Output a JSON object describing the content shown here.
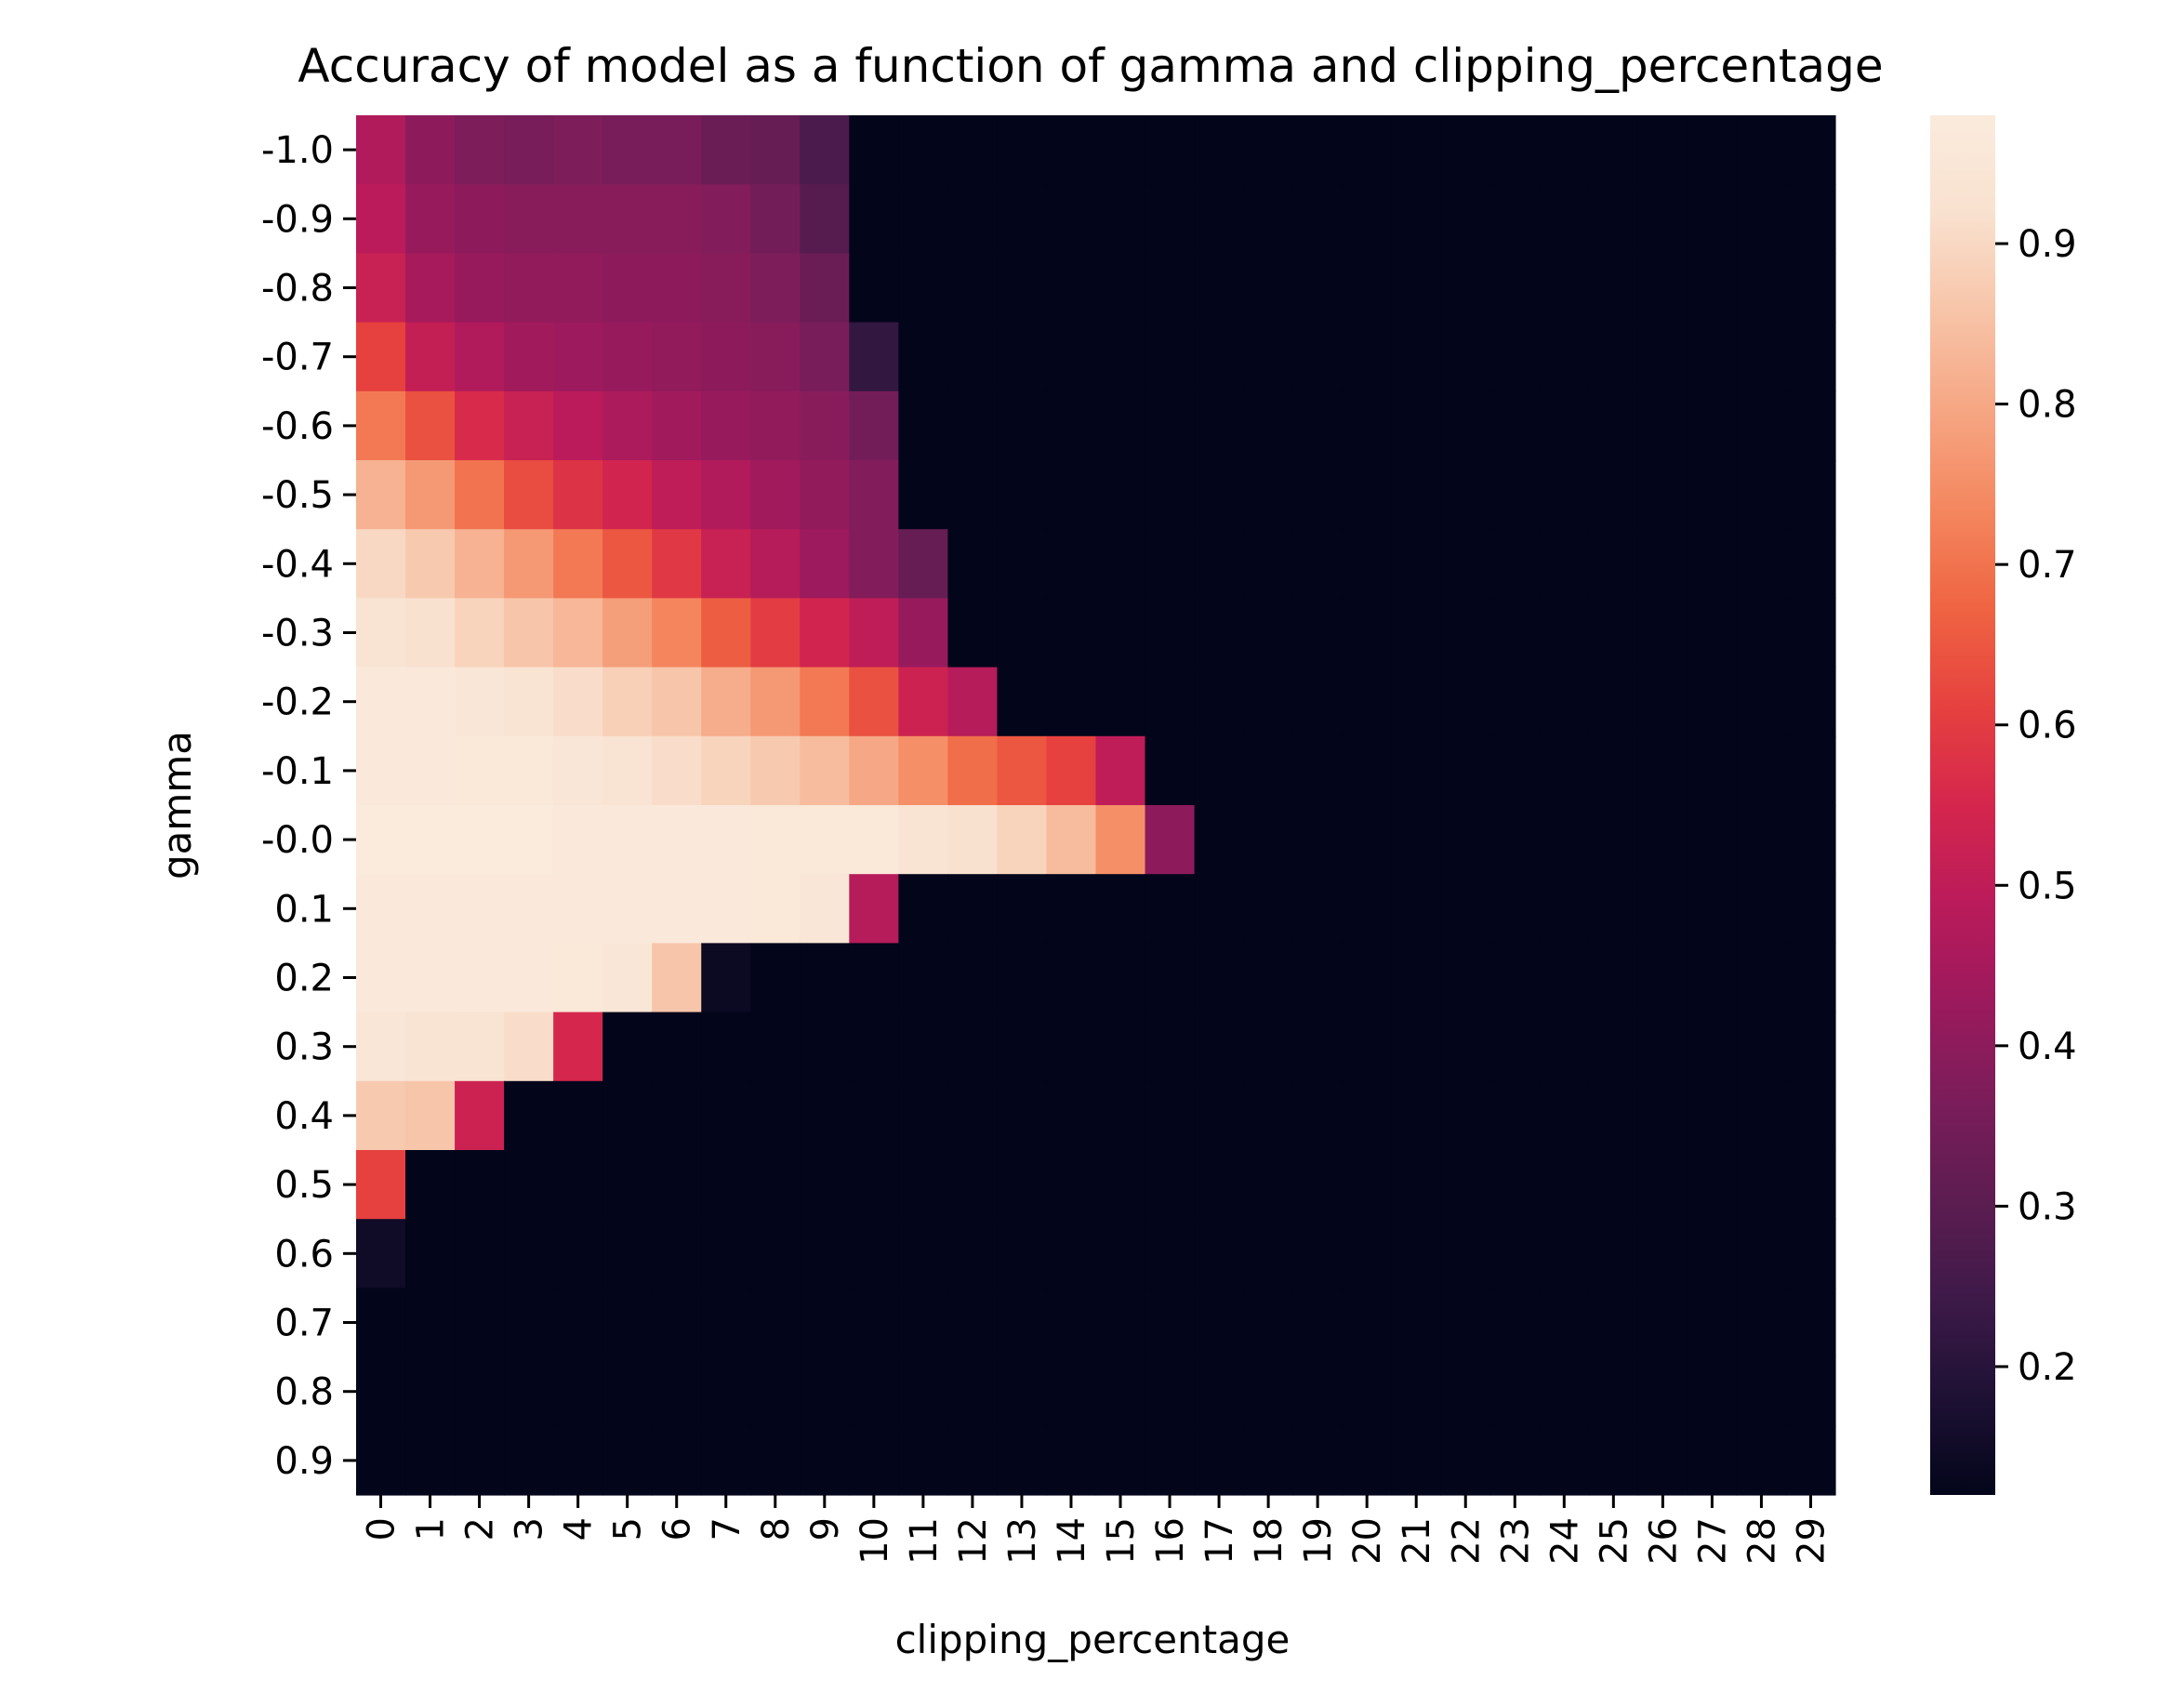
{
  "chart_data": {
    "type": "heatmap",
    "title": "Accuracy of model as a function of gamma and clipping_percentage",
    "xlabel": "clipping_percentage",
    "ylabel": "gamma",
    "x": [
      "0",
      "1",
      "2",
      "3",
      "4",
      "5",
      "6",
      "7",
      "8",
      "9",
      "10",
      "11",
      "12",
      "13",
      "14",
      "15",
      "16",
      "17",
      "18",
      "19",
      "20",
      "21",
      "22",
      "23",
      "24",
      "25",
      "26",
      "27",
      "28",
      "29"
    ],
    "y": [
      "-1.0",
      "-0.9",
      "-0.8",
      "-0.7",
      "-0.6",
      "-0.5",
      "-0.4",
      "-0.3",
      "-0.2",
      "-0.1",
      "-0.0",
      "0.1",
      "0.2",
      "0.3",
      "0.4",
      "0.5",
      "0.6",
      "0.7",
      "0.8",
      "0.9"
    ],
    "values": [
      [
        0.47,
        0.4,
        0.37,
        0.36,
        0.37,
        0.36,
        0.36,
        0.33,
        0.32,
        0.27,
        0.12,
        0.12,
        0.12,
        0.12,
        0.12,
        0.12,
        0.12,
        0.12,
        0.12,
        0.12,
        0.12,
        0.12,
        0.12,
        0.12,
        0.12,
        0.12,
        0.12,
        0.12,
        0.12,
        0.12
      ],
      [
        0.49,
        0.42,
        0.4,
        0.39,
        0.39,
        0.39,
        0.39,
        0.38,
        0.35,
        0.29,
        0.12,
        0.12,
        0.12,
        0.12,
        0.12,
        0.12,
        0.12,
        0.12,
        0.12,
        0.12,
        0.12,
        0.12,
        0.12,
        0.12,
        0.12,
        0.12,
        0.12,
        0.12,
        0.12,
        0.12
      ],
      [
        0.52,
        0.45,
        0.42,
        0.41,
        0.41,
        0.4,
        0.4,
        0.39,
        0.37,
        0.33,
        0.12,
        0.12,
        0.12,
        0.12,
        0.12,
        0.12,
        0.12,
        0.12,
        0.12,
        0.12,
        0.12,
        0.12,
        0.12,
        0.12,
        0.12,
        0.12,
        0.12,
        0.12,
        0.12,
        0.12
      ],
      [
        0.61,
        0.51,
        0.47,
        0.44,
        0.43,
        0.42,
        0.41,
        0.4,
        0.39,
        0.36,
        0.22,
        0.12,
        0.12,
        0.12,
        0.12,
        0.12,
        0.12,
        0.12,
        0.12,
        0.12,
        0.12,
        0.12,
        0.12,
        0.12,
        0.12,
        0.12,
        0.12,
        0.12,
        0.12,
        0.12
      ],
      [
        0.71,
        0.64,
        0.56,
        0.52,
        0.49,
        0.46,
        0.44,
        0.42,
        0.41,
        0.39,
        0.35,
        0.12,
        0.12,
        0.12,
        0.12,
        0.12,
        0.12,
        0.12,
        0.12,
        0.12,
        0.12,
        0.12,
        0.12,
        0.12,
        0.12,
        0.12,
        0.12,
        0.12,
        0.12,
        0.12
      ],
      [
        0.82,
        0.77,
        0.7,
        0.63,
        0.58,
        0.54,
        0.5,
        0.47,
        0.44,
        0.41,
        0.38,
        0.12,
        0.12,
        0.12,
        0.12,
        0.12,
        0.12,
        0.12,
        0.12,
        0.12,
        0.12,
        0.12,
        0.12,
        0.12,
        0.12,
        0.12,
        0.12,
        0.12,
        0.12,
        0.12
      ],
      [
        0.9,
        0.87,
        0.82,
        0.77,
        0.71,
        0.65,
        0.59,
        0.52,
        0.48,
        0.43,
        0.38,
        0.32,
        0.12,
        0.12,
        0.12,
        0.12,
        0.12,
        0.12,
        0.12,
        0.12,
        0.12,
        0.12,
        0.12,
        0.12,
        0.12,
        0.12,
        0.12,
        0.12,
        0.12,
        0.12
      ],
      [
        0.94,
        0.92,
        0.89,
        0.86,
        0.83,
        0.78,
        0.73,
        0.66,
        0.6,
        0.54,
        0.5,
        0.42,
        0.12,
        0.12,
        0.12,
        0.12,
        0.12,
        0.12,
        0.12,
        0.12,
        0.12,
        0.12,
        0.12,
        0.12,
        0.12,
        0.12,
        0.12,
        0.12,
        0.12,
        0.12
      ],
      [
        0.97,
        0.97,
        0.95,
        0.93,
        0.91,
        0.88,
        0.86,
        0.81,
        0.77,
        0.71,
        0.64,
        0.53,
        0.48,
        0.12,
        0.12,
        0.12,
        0.12,
        0.12,
        0.12,
        0.12,
        0.12,
        0.12,
        0.12,
        0.12,
        0.12,
        0.12,
        0.12,
        0.12,
        0.12,
        0.12
      ],
      [
        0.97,
        0.97,
        0.96,
        0.96,
        0.95,
        0.93,
        0.91,
        0.89,
        0.87,
        0.84,
        0.8,
        0.75,
        0.69,
        0.65,
        0.61,
        0.5,
        0.12,
        0.12,
        0.12,
        0.12,
        0.12,
        0.12,
        0.12,
        0.12,
        0.12,
        0.12,
        0.12,
        0.12,
        0.12,
        0.12
      ],
      [
        0.98,
        0.98,
        0.98,
        0.98,
        0.97,
        0.97,
        0.97,
        0.97,
        0.96,
        0.96,
        0.96,
        0.94,
        0.92,
        0.89,
        0.84,
        0.75,
        0.4,
        0.12,
        0.12,
        0.12,
        0.12,
        0.12,
        0.12,
        0.12,
        0.12,
        0.12,
        0.12,
        0.12,
        0.12,
        0.12
      ],
      [
        0.97,
        0.97,
        0.97,
        0.97,
        0.97,
        0.97,
        0.97,
        0.97,
        0.96,
        0.95,
        0.48,
        0.12,
        0.12,
        0.12,
        0.12,
        0.12,
        0.12,
        0.12,
        0.12,
        0.12,
        0.12,
        0.12,
        0.12,
        0.12,
        0.12,
        0.12,
        0.12,
        0.12,
        0.12,
        0.12
      ],
      [
        0.97,
        0.97,
        0.97,
        0.97,
        0.96,
        0.95,
        0.86,
        0.14,
        0.12,
        0.12,
        0.12,
        0.12,
        0.12,
        0.12,
        0.12,
        0.12,
        0.12,
        0.12,
        0.12,
        0.12,
        0.12,
        0.12,
        0.12,
        0.12,
        0.12,
        0.12,
        0.12,
        0.12,
        0.12,
        0.12
      ],
      [
        0.95,
        0.94,
        0.93,
        0.91,
        0.55,
        0.12,
        0.12,
        0.12,
        0.12,
        0.12,
        0.12,
        0.12,
        0.12,
        0.12,
        0.12,
        0.12,
        0.12,
        0.12,
        0.12,
        0.12,
        0.12,
        0.12,
        0.12,
        0.12,
        0.12,
        0.12,
        0.12,
        0.12,
        0.12,
        0.12
      ],
      [
        0.87,
        0.86,
        0.53,
        0.12,
        0.12,
        0.12,
        0.12,
        0.12,
        0.12,
        0.12,
        0.12,
        0.12,
        0.12,
        0.12,
        0.12,
        0.12,
        0.12,
        0.12,
        0.12,
        0.12,
        0.12,
        0.12,
        0.12,
        0.12,
        0.12,
        0.12,
        0.12,
        0.12,
        0.12,
        0.12
      ],
      [
        0.61,
        0.12,
        0.12,
        0.12,
        0.12,
        0.12,
        0.12,
        0.12,
        0.12,
        0.12,
        0.12,
        0.12,
        0.12,
        0.12,
        0.12,
        0.12,
        0.12,
        0.12,
        0.12,
        0.12,
        0.12,
        0.12,
        0.12,
        0.12,
        0.12,
        0.12,
        0.12,
        0.12,
        0.12,
        0.12
      ],
      [
        0.15,
        0.12,
        0.12,
        0.12,
        0.12,
        0.12,
        0.12,
        0.12,
        0.12,
        0.12,
        0.12,
        0.12,
        0.12,
        0.12,
        0.12,
        0.12,
        0.12,
        0.12,
        0.12,
        0.12,
        0.12,
        0.12,
        0.12,
        0.12,
        0.12,
        0.12,
        0.12,
        0.12,
        0.12,
        0.12
      ],
      [
        0.12,
        0.12,
        0.12,
        0.12,
        0.12,
        0.12,
        0.12,
        0.12,
        0.12,
        0.12,
        0.12,
        0.12,
        0.12,
        0.12,
        0.12,
        0.12,
        0.12,
        0.12,
        0.12,
        0.12,
        0.12,
        0.12,
        0.12,
        0.12,
        0.12,
        0.12,
        0.12,
        0.12,
        0.12,
        0.12
      ],
      [
        0.12,
        0.12,
        0.12,
        0.12,
        0.12,
        0.12,
        0.12,
        0.12,
        0.12,
        0.12,
        0.12,
        0.12,
        0.12,
        0.12,
        0.12,
        0.12,
        0.12,
        0.12,
        0.12,
        0.12,
        0.12,
        0.12,
        0.12,
        0.12,
        0.12,
        0.12,
        0.12,
        0.12,
        0.12,
        0.12
      ],
      [
        0.12,
        0.12,
        0.12,
        0.12,
        0.12,
        0.12,
        0.12,
        0.12,
        0.12,
        0.12,
        0.12,
        0.12,
        0.12,
        0.12,
        0.12,
        0.12,
        0.12,
        0.12,
        0.12,
        0.12,
        0.12,
        0.12,
        0.12,
        0.12,
        0.12,
        0.12,
        0.12,
        0.12,
        0.12,
        0.12
      ]
    ],
    "colorbar": {
      "vmin": 0.12,
      "vmax": 0.98,
      "ticks": [
        "0.2",
        "0.3",
        "0.4",
        "0.5",
        "0.6",
        "0.7",
        "0.8",
        "0.9"
      ],
      "colormap": "rocket",
      "colormap_stops": [
        "#03051a",
        "#1e1134",
        "#3e1a49",
        "#5d1d51",
        "#7b1d5a",
        "#9b1a5d",
        "#ba1b5a",
        "#d5264d",
        "#e6413f",
        "#ef6442",
        "#f4875f",
        "#f6a683",
        "#f7c4a8",
        "#f9e1cf",
        "#faebdd"
      ]
    },
    "grid": false,
    "legend": "colorbar-right"
  }
}
